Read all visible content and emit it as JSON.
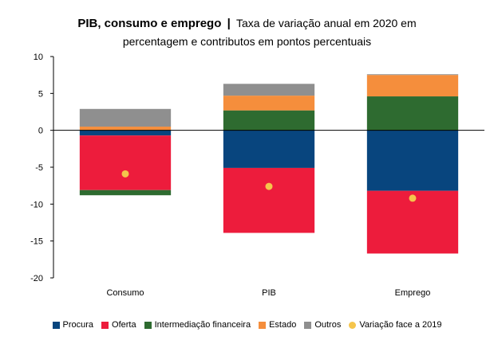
{
  "chart_data": {
    "type": "bar",
    "stacked": true,
    "title": "PIB, consumo e emprego",
    "subtitle_line1": "Taxa de variação anual em 2020 em",
    "subtitle_line2": "percentagem e contributos em pontos percentuais",
    "categories": [
      "Consumo",
      "PIB",
      "Emprego"
    ],
    "ylim": [
      -20,
      10
    ],
    "yticks": [
      10,
      5,
      0,
      -5,
      -10,
      -15,
      -20
    ],
    "series": [
      {
        "name": "Procura",
        "color": "#08457E",
        "values": [
          -0.7,
          -5.1,
          -8.2
        ]
      },
      {
        "name": "Oferta",
        "color": "#ED1C3C",
        "values": [
          -7.4,
          -8.8,
          -8.5
        ]
      },
      {
        "name": "Intermediação financeira",
        "color": "#2E6B30",
        "values": [
          -0.7,
          2.7,
          4.6
        ]
      },
      {
        "name": "Estado",
        "color": "#F58E3C",
        "values": [
          0.5,
          2.0,
          2.9
        ]
      },
      {
        "name": "Outros",
        "color": "#8F8F8F",
        "values": [
          2.4,
          1.6,
          0.1
        ]
      }
    ],
    "markers": {
      "name": "Variação face a 2019",
      "color": "#F5C54C",
      "values": [
        -5.9,
        -7.6,
        -9.2
      ]
    }
  }
}
